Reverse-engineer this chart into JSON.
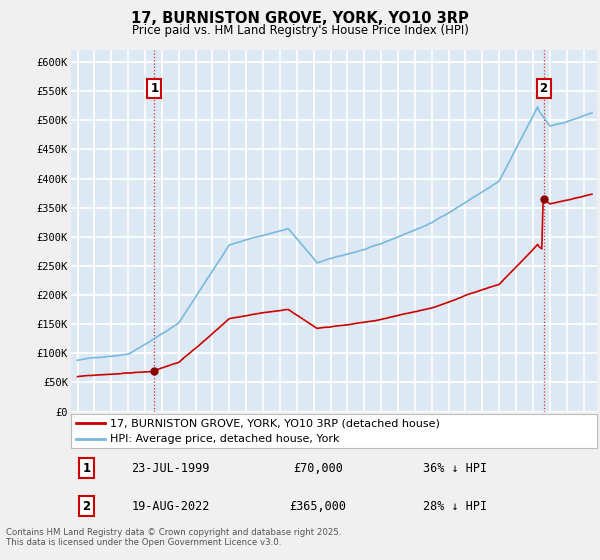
{
  "title": "17, BURNISTON GROVE, YORK, YO10 3RP",
  "subtitle": "Price paid vs. HM Land Registry's House Price Index (HPI)",
  "ylabel_ticks": [
    "£0",
    "£50K",
    "£100K",
    "£150K",
    "£200K",
    "£250K",
    "£300K",
    "£350K",
    "£400K",
    "£450K",
    "£500K",
    "£550K",
    "£600K"
  ],
  "ylim": [
    0,
    620000
  ],
  "xlim_start": 1994.6,
  "xlim_end": 2025.8,
  "hpi_color": "#7ab8e0",
  "price_color": "#cc0000",
  "purchase1_date": "23-JUL-1999",
  "purchase1_price": 70000,
  "purchase1_label": "36% ↓ HPI",
  "purchase2_date": "19-AUG-2022",
  "purchase2_price": 365000,
  "purchase2_label": "28% ↓ HPI",
  "legend_line1": "17, BURNISTON GROVE, YORK, YO10 3RP (detached house)",
  "legend_line2": "HPI: Average price, detached house, York",
  "footer": "Contains HM Land Registry data © Crown copyright and database right 2025.\nThis data is licensed under the Open Government Licence v3.0.",
  "background_color": "#f0f0f0",
  "plot_bg_color": "#dce9f5",
  "grid_color": "#ffffff",
  "purchase1_x": 1999.56,
  "purchase2_x": 2022.63
}
